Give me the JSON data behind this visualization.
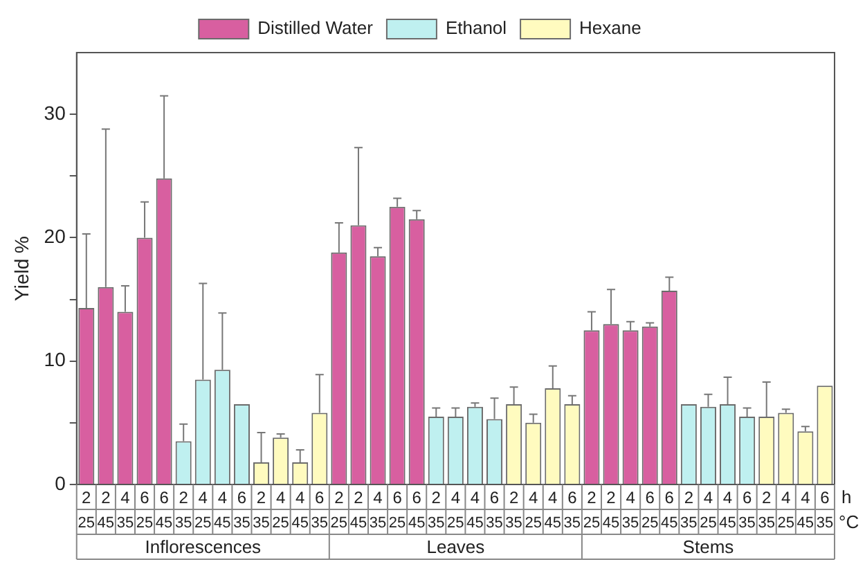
{
  "chart_data": {
    "type": "bar",
    "ylabel": "Yield %",
    "categories": [
      "2\n25",
      "2\n45",
      "4\n35",
      "6\n25",
      "6\n45",
      "2\n35",
      "4\n25",
      "4\n45",
      "6\n35",
      "2\n35",
      "4\n25",
      "4\n45",
      "6\n35",
      "2\n25",
      "2\n45",
      "4\n35",
      "6\n25",
      "6\n45",
      "2\n35",
      "4\n25",
      "4\n45",
      "6\n35",
      "2\n35",
      "4\n25",
      "4\n45",
      "6\n35",
      "2\n25",
      "2\n45",
      "4\n35",
      "6\n25",
      "6\n45",
      "2\n35",
      "4\n25",
      "4\n45",
      "6\n35",
      "2\n35",
      "4\n25",
      "4\n45",
      "6\n35"
    ],
    "series": [
      {
        "name": "Distilled Water",
        "color": "#d85fa0",
        "values": [
          14.3,
          16.0,
          14.0,
          20.0,
          24.8,
          null,
          null,
          null,
          null,
          null,
          null,
          null,
          null,
          18.8,
          21.0,
          18.5,
          22.5,
          21.5,
          null,
          null,
          null,
          null,
          null,
          null,
          null,
          null,
          12.5,
          13.0,
          12.5,
          12.8,
          15.7,
          null,
          null,
          null,
          null,
          null,
          null,
          null,
          null
        ],
        "errors": [
          [
            14.3,
            20.3
          ],
          [
            16.0,
            28.8
          ],
          [
            14.0,
            16.1
          ],
          [
            20.0,
            22.9
          ],
          [
            24.8,
            31.5
          ],
          null,
          null,
          null,
          null,
          null,
          null,
          null,
          null,
          [
            18.8,
            21.2
          ],
          [
            21.0,
            27.3
          ],
          [
            18.5,
            19.2
          ],
          [
            22.5,
            23.2
          ],
          [
            21.5,
            22.2
          ],
          null,
          null,
          null,
          null,
          null,
          null,
          null,
          null,
          [
            12.5,
            14.0
          ],
          [
            13.0,
            15.8
          ],
          [
            12.5,
            13.2
          ],
          [
            12.8,
            13.1
          ],
          [
            15.7,
            16.8
          ],
          null,
          null,
          null,
          null,
          null,
          null,
          null,
          null
        ]
      },
      {
        "name": "Ethanol",
        "color": "#bff0f0",
        "values": [
          null,
          null,
          null,
          null,
          null,
          3.5,
          8.5,
          9.3,
          6.5,
          null,
          null,
          null,
          null,
          null,
          null,
          null,
          null,
          null,
          5.5,
          5.5,
          6.3,
          5.3,
          null,
          null,
          null,
          null,
          null,
          null,
          null,
          null,
          null,
          6.5,
          6.3,
          6.5,
          5.5,
          null,
          null,
          null,
          null
        ],
        "errors": [
          null,
          null,
          null,
          null,
          null,
          [
            3.5,
            4.9
          ],
          [
            8.5,
            16.3
          ],
          [
            9.3,
            13.9
          ],
          null,
          null,
          null,
          null,
          null,
          null,
          null,
          null,
          null,
          null,
          [
            5.5,
            6.2
          ],
          [
            5.5,
            6.2
          ],
          [
            6.3,
            6.6
          ],
          [
            5.3,
            7.0
          ],
          null,
          null,
          null,
          null,
          null,
          null,
          null,
          null,
          null,
          null,
          [
            6.3,
            7.3
          ],
          [
            6.5,
            8.7
          ],
          [
            5.5,
            6.2
          ],
          null,
          null,
          null,
          null
        ]
      },
      {
        "name": "Hexane",
        "color": "#fffbbf",
        "values": [
          null,
          null,
          null,
          null,
          null,
          null,
          null,
          null,
          null,
          1.8,
          3.8,
          1.8,
          5.8,
          null,
          null,
          null,
          null,
          null,
          null,
          null,
          null,
          null,
          6.5,
          5.0,
          7.8,
          6.5,
          null,
          null,
          null,
          null,
          null,
          null,
          null,
          null,
          null,
          5.5,
          5.8,
          4.3,
          8.0
        ],
        "errors": [
          null,
          null,
          null,
          null,
          null,
          null,
          null,
          null,
          null,
          [
            1.8,
            4.2
          ],
          [
            3.8,
            4.1
          ],
          [
            1.8,
            2.8
          ],
          [
            5.8,
            8.9
          ],
          null,
          null,
          null,
          null,
          null,
          null,
          null,
          null,
          null,
          [
            6.5,
            7.9
          ],
          [
            5.0,
            5.7
          ],
          [
            7.8,
            9.6
          ],
          [
            6.5,
            7.2
          ],
          null,
          null,
          null,
          null,
          null,
          null,
          null,
          null,
          null,
          [
            5.5,
            8.3
          ],
          [
            5.8,
            6.1
          ],
          [
            4.3,
            4.7
          ],
          null
        ]
      }
    ],
    "ylim": [
      0,
      35
    ],
    "yticks": [
      0,
      {
        "value": 5,
        "label": null
      },
      10,
      {
        "value": 15,
        "label": null
      },
      20,
      {
        "value": 25,
        "label": null
      },
      30
    ],
    "grid": false,
    "legend": "top",
    "annotations": [
      "h",
      "°C",
      "Inflorescences",
      "Leaves",
      "Stems"
    ]
  }
}
